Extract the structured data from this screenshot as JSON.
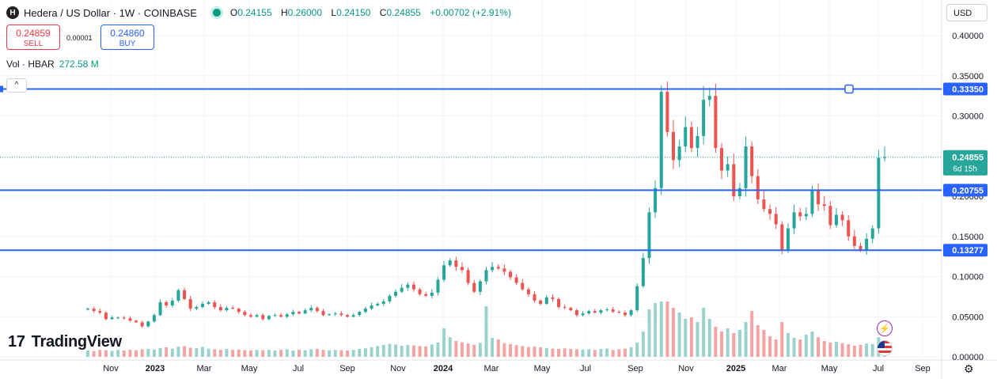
{
  "header": {
    "logo_letter": "H",
    "title": "Hedera / US Dollar · 1W · COINBASE",
    "open_label": "O",
    "open": "0.24155",
    "high_label": "H",
    "high": "0.26000",
    "low_label": "L",
    "low": "0.24150",
    "close_label": "C",
    "close": "0.24855",
    "change": "+0.00702 (+2.91%)"
  },
  "trade": {
    "sell_price": "0.24859",
    "sell_label": "SELL",
    "spread": "0.00001",
    "buy_price": "0.24860",
    "buy_label": "BUY"
  },
  "volume": {
    "label": "Vol · HBAR",
    "value": "272.58 M"
  },
  "currency": "USD",
  "watermark": "TradingView",
  "colors": {
    "up": "#26a69a",
    "down": "#ef5350",
    "vol_up": "#9ad3cd",
    "vol_down": "#f4a5a3",
    "level": "#2962ff",
    "last": "#26a69a"
  },
  "chart_data": {
    "type": "candlestick",
    "symbol": "Hedera / US Dollar",
    "interval": "1W",
    "exchange": "COINBASE",
    "ylim": [
      0.0,
      0.42
    ],
    "y_ticks": [
      "0.40000",
      "0.35000",
      "0.30000",
      "0.25000",
      "0.20000",
      "0.15000",
      "0.10000",
      "0.05000",
      "0.00000"
    ],
    "x_ticks": [
      "Nov",
      "2023",
      "Mar",
      "May",
      "Jul",
      "Sep",
      "Nov",
      "2024",
      "Mar",
      "May",
      "Jul",
      "Sep",
      "Nov",
      "2025",
      "Mar",
      "May",
      "Jul",
      "Sep"
    ],
    "x_tick_bold": [
      "2023",
      "2024",
      "2025"
    ],
    "horizontal_levels": [
      {
        "value": 0.3335,
        "label": "0.33350"
      },
      {
        "value": 0.20755,
        "label": "0.20755"
      },
      {
        "value": 0.13277,
        "label": "0.13277"
      }
    ],
    "last_price": {
      "value": 0.24855,
      "label": "0.24855",
      "countdown": "6d 15h"
    },
    "close_series": [
      0.06,
      0.057,
      0.055,
      0.047,
      0.049,
      0.049,
      0.048,
      0.045,
      0.043,
      0.038,
      0.044,
      0.052,
      0.068,
      0.064,
      0.07,
      0.083,
      0.072,
      0.06,
      0.062,
      0.066,
      0.068,
      0.062,
      0.058,
      0.061,
      0.06,
      0.056,
      0.052,
      0.05,
      0.052,
      0.047,
      0.051,
      0.052,
      0.05,
      0.053,
      0.056,
      0.054,
      0.058,
      0.061,
      0.057,
      0.052,
      0.053,
      0.054,
      0.052,
      0.05,
      0.052,
      0.056,
      0.06,
      0.064,
      0.066,
      0.069,
      0.076,
      0.081,
      0.086,
      0.09,
      0.084,
      0.078,
      0.076,
      0.08,
      0.096,
      0.114,
      0.12,
      0.112,
      0.108,
      0.092,
      0.081,
      0.094,
      0.108,
      0.112,
      0.11,
      0.106,
      0.099,
      0.092,
      0.084,
      0.078,
      0.07,
      0.066,
      0.074,
      0.072,
      0.062,
      0.061,
      0.058,
      0.052,
      0.054,
      0.057,
      0.055,
      0.058,
      0.059,
      0.056,
      0.055,
      0.052,
      0.058,
      0.088,
      0.123,
      0.18,
      0.21,
      0.33,
      0.28,
      0.245,
      0.262,
      0.286,
      0.26,
      0.275,
      0.32,
      0.325,
      0.26,
      0.232,
      0.24,
      0.2,
      0.21,
      0.262,
      0.225,
      0.196,
      0.184,
      0.178,
      0.165,
      0.132,
      0.16,
      0.18,
      0.175,
      0.178,
      0.208,
      0.19,
      0.188,
      0.164,
      0.177,
      0.17,
      0.15,
      0.138,
      0.133,
      0.147,
      0.16,
      0.248,
      0.24855
    ],
    "volume_series_relative": [
      0.2,
      0.18,
      0.22,
      0.21,
      0.19,
      0.22,
      0.2,
      0.22,
      0.21,
      0.24,
      0.25,
      0.23,
      0.28,
      0.3,
      0.26,
      0.32,
      0.34,
      0.29,
      0.27,
      0.31,
      0.26,
      0.24,
      0.22,
      0.25,
      0.22,
      0.23,
      0.21,
      0.2,
      0.22,
      0.21,
      0.22,
      0.2,
      0.22,
      0.24,
      0.2,
      0.22,
      0.21,
      0.24,
      0.25,
      0.22,
      0.21,
      0.22,
      0.21,
      0.2,
      0.22,
      0.25,
      0.27,
      0.3,
      0.34,
      0.38,
      0.41,
      0.39,
      0.35,
      0.37,
      0.36,
      0.34,
      0.33,
      0.39,
      0.45,
      0.9,
      0.62,
      0.5,
      0.46,
      0.42,
      0.38,
      0.44,
      1.6,
      0.6,
      0.55,
      0.43,
      0.4,
      0.37,
      0.34,
      0.31,
      0.33,
      0.3,
      0.28,
      0.26,
      0.25,
      0.27,
      0.25,
      0.24,
      0.23,
      0.24,
      0.22,
      0.25,
      0.26,
      0.22,
      0.24,
      0.26,
      0.3,
      0.45,
      0.8,
      1.5,
      1.7,
      2.0,
      2.4,
      1.55,
      1.4,
      1.2,
      1.25,
      1.1,
      1.55,
      1.2,
      0.95,
      0.8,
      0.9,
      0.75,
      0.85,
      1.1,
      1.45,
      1.0,
      0.85,
      0.65,
      0.55,
      1.1,
      0.75,
      0.6,
      0.55,
      0.7,
      0.8,
      0.62,
      0.5,
      0.45,
      0.48,
      0.43,
      0.4,
      0.35,
      0.38,
      0.42,
      0.4,
      0.62,
      0.15
    ]
  }
}
